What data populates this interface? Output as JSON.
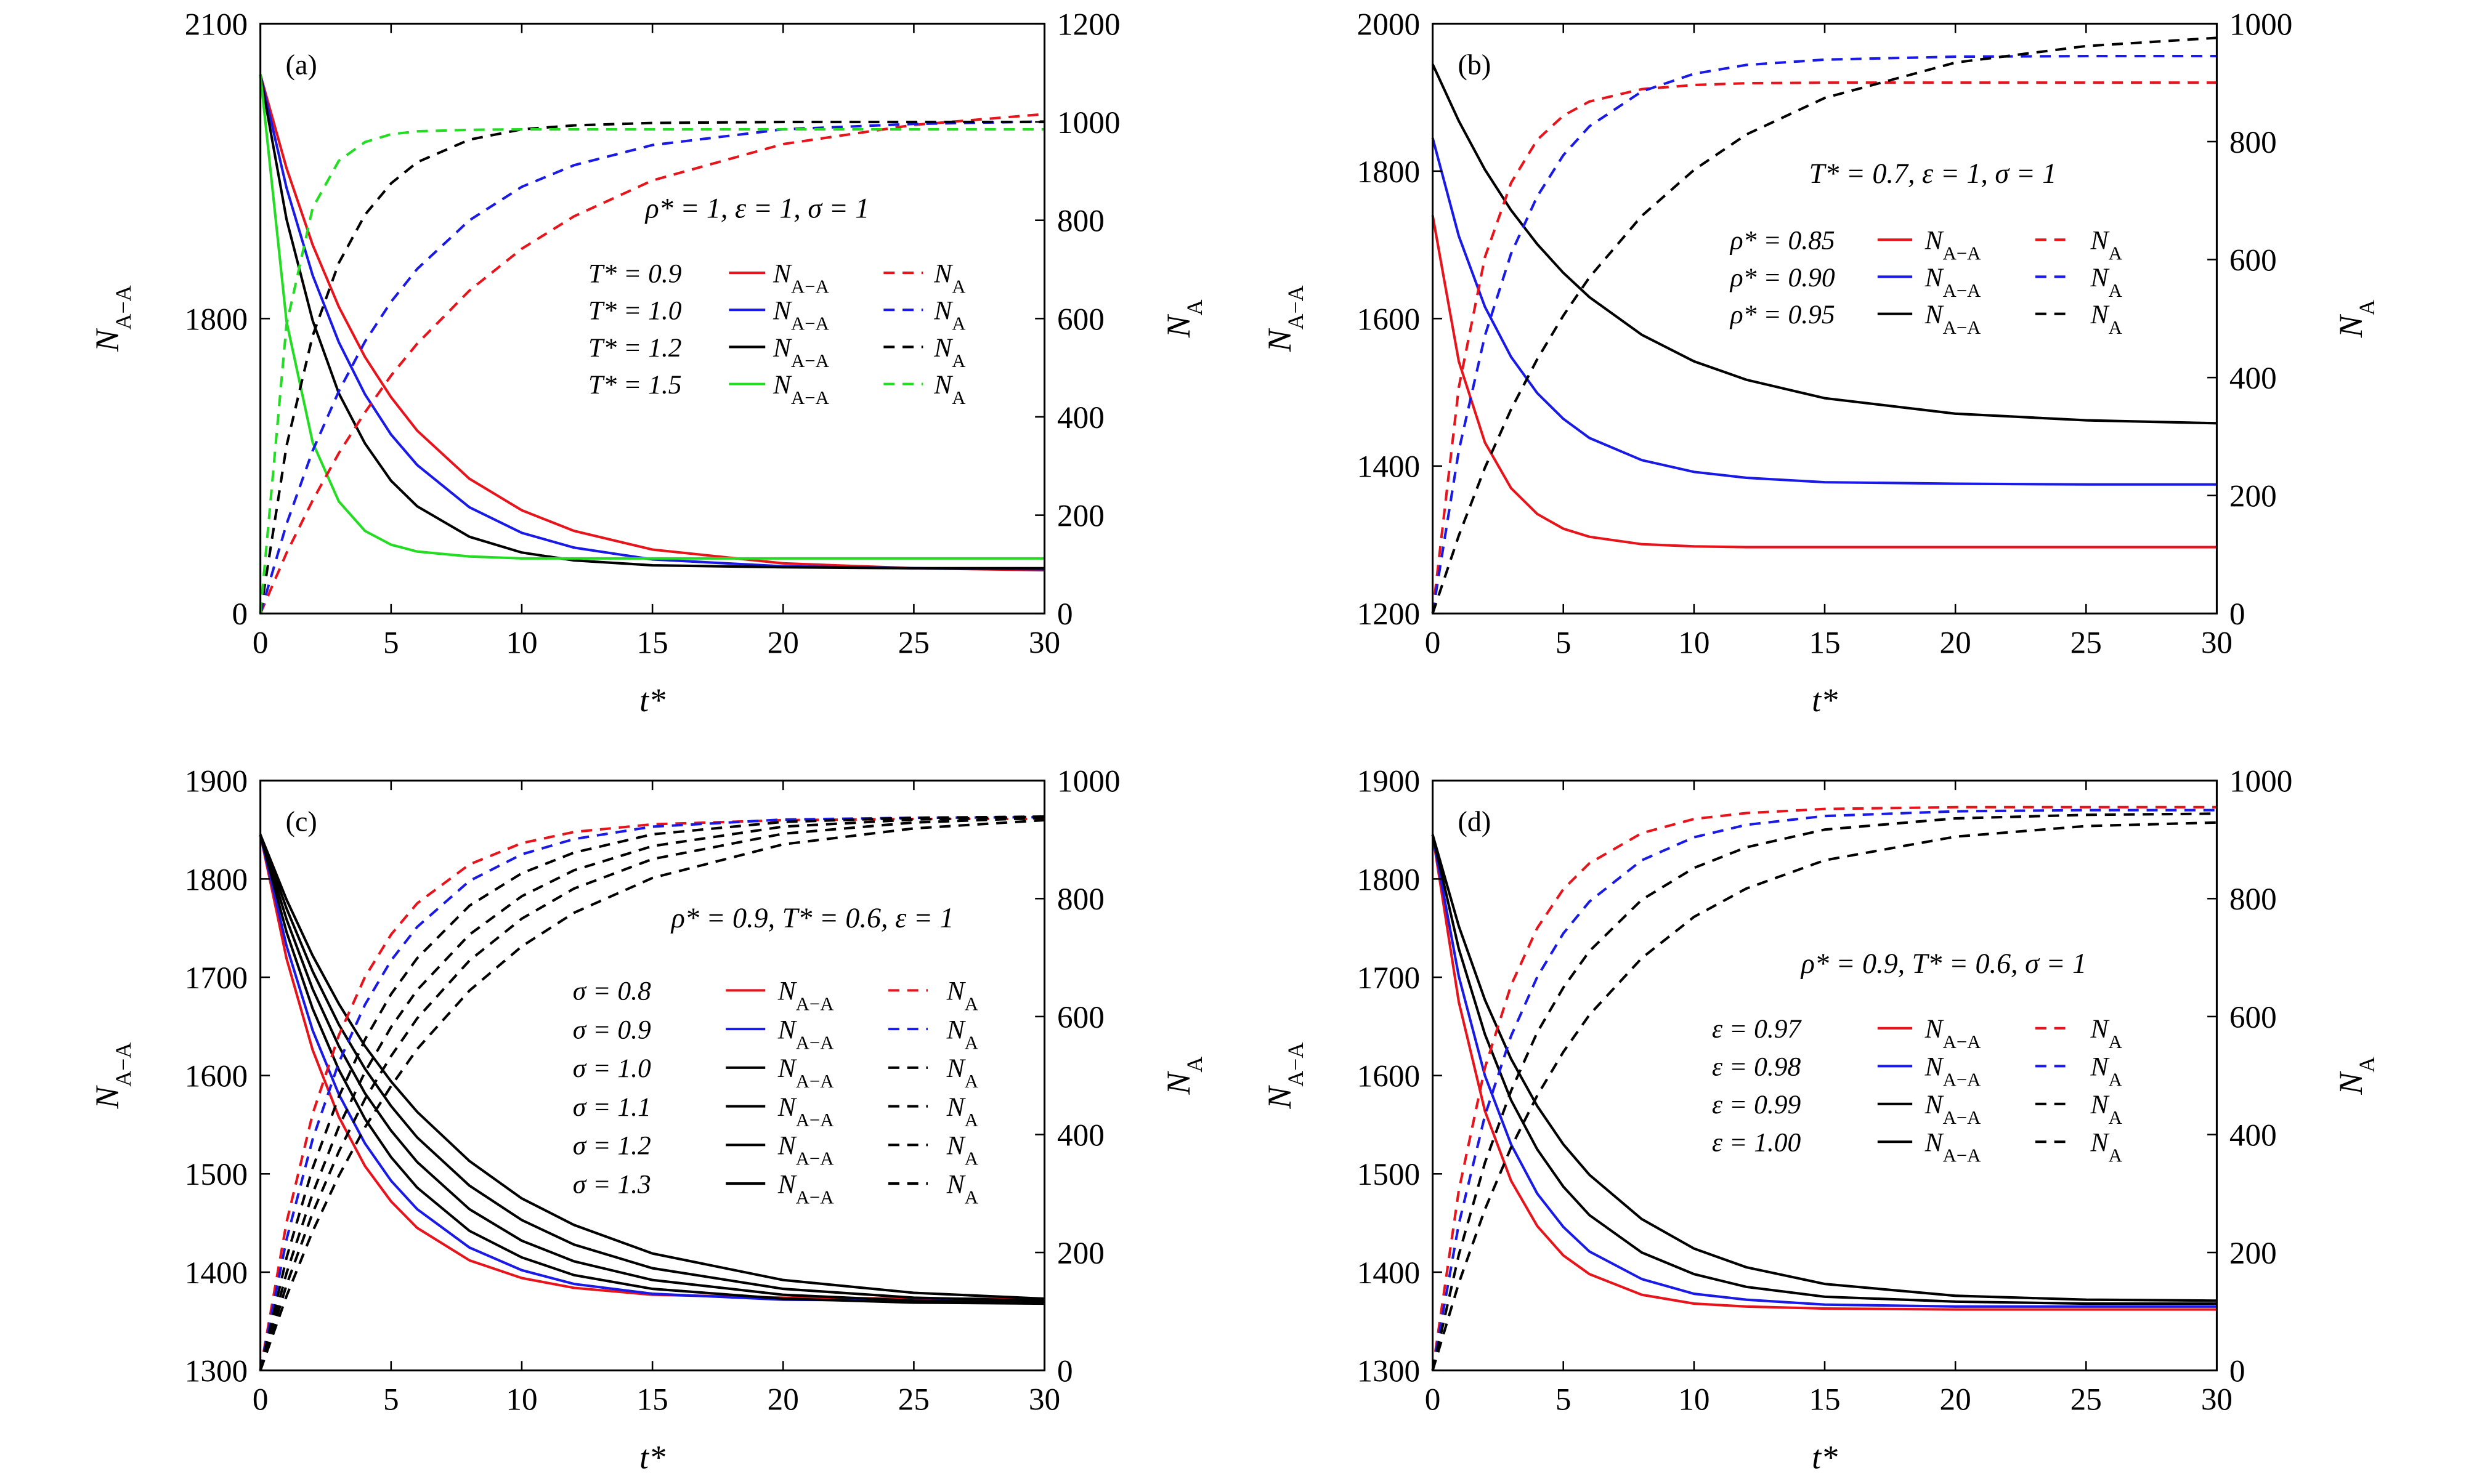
{
  "chart_data": [
    {
      "type": "line",
      "panel_label": "(a)",
      "annotation": "ρ* = 1, ε = 1, σ = 1",
      "x": [
        0,
        1,
        2,
        3,
        4,
        5,
        6,
        8,
        10,
        12,
        15,
        20,
        25,
        30
      ],
      "xlim": [
        0,
        30
      ],
      "xticks": [
        0,
        5,
        10,
        15,
        20,
        25,
        30
      ],
      "xlabel": "t*",
      "ylabel": {
        "text": "N",
        "sub": "A−A"
      },
      "y2label": {
        "text": "N",
        "sub": "A"
      },
      "ylim": [
        1500,
        2100
      ],
      "yticks": [
        {
          "value": 1500,
          "label": "0"
        },
        1800,
        2100
      ],
      "y2lim": [
        0,
        1200
      ],
      "y2ticks": [
        0,
        200,
        400,
        600,
        800,
        1000,
        1200
      ],
      "series": [
        {
          "name": "T* = 0.9",
          "color": "#e8141c",
          "values": [
            2048,
            1953,
            1875,
            1812,
            1761,
            1720,
            1686,
            1637,
            1605,
            1584,
            1565,
            1551,
            1546,
            1544
          ]
        },
        {
          "name": "T* = 1.0",
          "color": "#1a1ae6",
          "values": [
            2048,
            1933,
            1844,
            1776,
            1723,
            1682,
            1651,
            1608,
            1582,
            1567,
            1555,
            1548,
            1546,
            1545
          ]
        },
        {
          "name": "T* = 1.2",
          "color": "#000000",
          "values": [
            2048,
            1901,
            1798,
            1724,
            1673,
            1635,
            1609,
            1578,
            1562,
            1554,
            1549,
            1547,
            1546,
            1546
          ]
        },
        {
          "name": "T* = 1.5",
          "color": "#22dd22",
          "values": [
            2048,
            1797,
            1674,
            1614,
            1584,
            1570,
            1563,
            1558,
            1556,
            1556,
            1556,
            1556,
            1556,
            1556
          ]
        },
        {
          "axis": "y2",
          "dash": true,
          "color": "#e8141c",
          "values": [
            0,
            123,
            230,
            326,
            409,
            484,
            549,
            657,
            742,
            808,
            881,
            955,
            994,
            1016
          ]
        },
        {
          "axis": "y2",
          "dash": true,
          "color": "#1a1ae6",
          "values": [
            0,
            182,
            331,
            452,
            553,
            634,
            701,
            800,
            868,
            912,
            953,
            985,
            996,
            1001
          ]
        },
        {
          "axis": "y2",
          "dash": true,
          "color": "#000000",
          "values": [
            0,
            341,
            565,
            713,
            811,
            875,
            918,
            964,
            985,
            993,
            998,
            1000,
            1000,
            1000
          ]
        },
        {
          "axis": "y2",
          "dash": true,
          "color": "#22dd22",
          "values": [
            0,
            588,
            825,
            921,
            959,
            975,
            981,
            984,
            985,
            985,
            985,
            985,
            985,
            985
          ]
        }
      ]
    },
    {
      "type": "line",
      "panel_label": "(b)",
      "annotation": "T* = 0.7, ε = 1, σ = 1",
      "x": [
        0,
        1,
        2,
        3,
        4,
        5,
        6,
        8,
        10,
        12,
        15,
        20,
        25,
        30
      ],
      "xlim": [
        0,
        30
      ],
      "xticks": [
        0,
        5,
        10,
        15,
        20,
        25,
        30
      ],
      "xlabel": "t*",
      "ylabel": {
        "text": "N",
        "sub": "A−A"
      },
      "y2label": {
        "text": "N",
        "sub": "A"
      },
      "ylim": [
        1200,
        2000
      ],
      "yticks": [
        1200,
        1400,
        1600,
        1800,
        2000
      ],
      "y2lim": [
        0,
        1000
      ],
      "y2ticks": [
        0,
        200,
        400,
        600,
        800,
        1000
      ],
      "series": [
        {
          "name": "ρ* = 0.85",
          "color": "#e8141c",
          "values": [
            1740,
            1542,
            1432,
            1370,
            1335,
            1315,
            1304,
            1294,
            1291,
            1290,
            1290,
            1290,
            1290,
            1290
          ]
        },
        {
          "name": "ρ* = 0.90",
          "color": "#1a1ae6",
          "values": [
            1845,
            1712,
            1616,
            1548,
            1499,
            1464,
            1438,
            1408,
            1392,
            1384,
            1378,
            1376,
            1375,
            1375
          ]
        },
        {
          "name": "ρ* = 0.95",
          "color": "#000000",
          "values": [
            1945,
            1868,
            1802,
            1747,
            1701,
            1662,
            1629,
            1578,
            1542,
            1517,
            1492,
            1471,
            1462,
            1458
          ]
        },
        {
          "axis": "y2",
          "dash": true,
          "color": "#e8141c",
          "values": [
            0,
            383,
            604,
            730,
            803,
            844,
            868,
            889,
            896,
            899,
            900,
            900,
            900,
            900
          ]
        },
        {
          "axis": "y2",
          "dash": true,
          "color": "#1a1ae6",
          "values": [
            0,
            276,
            471,
            610,
            707,
            777,
            826,
            885,
            915,
            930,
            939,
            944,
            945,
            945
          ]
        },
        {
          "axis": "y2",
          "dash": true,
          "color": "#000000",
          "values": [
            0,
            132,
            247,
            346,
            431,
            505,
            570,
            674,
            752,
            812,
            874,
            934,
            962,
            976
          ]
        }
      ]
    },
    {
      "type": "line",
      "panel_label": "(c)",
      "annotation": "ρ* = 0.9, T* = 0.6, ε = 1",
      "x": [
        0,
        1,
        2,
        3,
        4,
        5,
        6,
        8,
        10,
        12,
        15,
        20,
        25,
        30
      ],
      "xlim": [
        0,
        30
      ],
      "xticks": [
        0,
        5,
        10,
        15,
        20,
        25,
        30
      ],
      "xlabel": "t*",
      "ylabel": {
        "text": "N",
        "sub": "A−A"
      },
      "y2label": {
        "text": "N",
        "sub": "A"
      },
      "ylim": [
        1300,
        1900
      ],
      "yticks": [
        1300,
        1400,
        1500,
        1600,
        1700,
        1800,
        1900
      ],
      "y2lim": [
        0,
        1000
      ],
      "y2ticks": [
        0,
        200,
        400,
        600,
        800,
        1000
      ],
      "series": [
        {
          "name": "σ = 0.8",
          "color": "#e8141c",
          "values": [
            1845,
            1719,
            1626,
            1558,
            1508,
            1472,
            1445,
            1412,
            1394,
            1384,
            1377,
            1374,
            1373,
            1373
          ]
        },
        {
          "name": "σ = 0.9",
          "color": "#1a1ae6",
          "values": [
            1845,
            1732,
            1646,
            1581,
            1531,
            1493,
            1464,
            1425,
            1402,
            1388,
            1378,
            1372,
            1371,
            1370
          ]
        },
        {
          "name": "σ = 1.0",
          "color": "#000000",
          "values": [
            1845,
            1746,
            1668,
            1606,
            1556,
            1517,
            1486,
            1442,
            1415,
            1397,
            1383,
            1373,
            1369,
            1368
          ]
        },
        {
          "name": "σ = 1.1",
          "color": "#000000",
          "values": [
            1845,
            1759,
            1688,
            1630,
            1582,
            1544,
            1512,
            1464,
            1432,
            1411,
            1392,
            1377,
            1371,
            1369
          ]
        },
        {
          "name": "σ = 1.2",
          "color": "#000000",
          "values": [
            1845,
            1770,
            1706,
            1652,
            1607,
            1569,
            1537,
            1488,
            1453,
            1428,
            1404,
            1383,
            1374,
            1371
          ]
        },
        {
          "name": "σ = 1.3",
          "color": "#000000",
          "values": [
            1845,
            1779,
            1722,
            1673,
            1630,
            1594,
            1563,
            1513,
            1475,
            1448,
            1419,
            1392,
            1379,
            1373
          ]
        },
        {
          "axis": "y2",
          "dash": true,
          "color": "#e8141c",
          "values": [
            0,
            251,
            435,
            568,
            667,
            739,
            792,
            858,
            894,
            913,
            926,
            933,
            935,
            935
          ]
        },
        {
          "axis": "y2",
          "dash": true,
          "color": "#1a1ae6",
          "values": [
            0,
            222,
            392,
            522,
            620,
            695,
            752,
            830,
            875,
            901,
            922,
            934,
            937,
            938
          ]
        },
        {
          "axis": "y2",
          "dash": true,
          "color": "#000000",
          "values": [
            0,
            191,
            343,
            464,
            561,
            638,
            699,
            788,
            843,
            878,
            909,
            930,
            937,
            939
          ]
        },
        {
          "axis": "y2",
          "dash": true,
          "color": "#000000",
          "values": [
            0,
            165,
            300,
            413,
            506,
            582,
            645,
            739,
            804,
            848,
            889,
            922,
            934,
            939
          ]
        },
        {
          "axis": "y2",
          "dash": true,
          "color": "#000000",
          "values": [
            0,
            145,
            267,
            371,
            460,
            533,
            597,
            695,
            766,
            817,
            867,
            910,
            929,
            937
          ]
        },
        {
          "axis": "y2",
          "dash": true,
          "color": "#000000",
          "values": [
            0,
            126,
            236,
            330,
            412,
            482,
            545,
            644,
            719,
            776,
            835,
            892,
            919,
            933
          ]
        }
      ]
    },
    {
      "type": "line",
      "panel_label": "(d)",
      "annotation": "ρ* = 0.9, T* = 0.6, σ = 1",
      "x": [
        0,
        1,
        2,
        3,
        4,
        5,
        6,
        8,
        10,
        12,
        15,
        20,
        25,
        30
      ],
      "xlim": [
        0,
        30
      ],
      "xticks": [
        0,
        5,
        10,
        15,
        20,
        25,
        30
      ],
      "xlabel": "t*",
      "ylabel": {
        "text": "N",
        "sub": "A−A"
      },
      "y2label": {
        "text": "N",
        "sub": "A"
      },
      "ylim": [
        1300,
        1900
      ],
      "yticks": [
        1300,
        1400,
        1500,
        1600,
        1700,
        1800,
        1900
      ],
      "y2lim": [
        0,
        1000
      ],
      "y2ticks": [
        0,
        200,
        400,
        600,
        800,
        1000
      ],
      "series": [
        {
          "name": "ε = 0.97",
          "color": "#e8141c",
          "values": [
            1845,
            1675,
            1564,
            1493,
            1447,
            1417,
            1398,
            1377,
            1368,
            1365,
            1363,
            1362,
            1362,
            1362
          ]
        },
        {
          "name": "ε = 0.98",
          "color": "#1a1ae6",
          "values": [
            1845,
            1701,
            1600,
            1530,
            1480,
            1446,
            1421,
            1393,
            1378,
            1372,
            1367,
            1365,
            1365,
            1365
          ]
        },
        {
          "name": "ε = 0.99",
          "color": "#000000",
          "values": [
            1845,
            1729,
            1642,
            1575,
            1525,
            1487,
            1458,
            1420,
            1398,
            1385,
            1375,
            1370,
            1368,
            1368
          ]
        },
        {
          "name": "ε = 1.00",
          "color": "#000000",
          "values": [
            1845,
            1752,
            1677,
            1617,
            1569,
            1530,
            1499,
            1454,
            1424,
            1405,
            1388,
            1376,
            1372,
            1371
          ]
        },
        {
          "axis": "y2",
          "dash": true,
          "color": "#e8141c",
          "values": [
            0,
            305,
            513,
            653,
            750,
            816,
            860,
            911,
            935,
            945,
            952,
            955,
            955,
            955
          ]
        },
        {
          "axis": "y2",
          "dash": true,
          "color": "#1a1ae6",
          "values": [
            0,
            248,
            432,
            567,
            667,
            741,
            795,
            865,
            904,
            925,
            940,
            948,
            950,
            950
          ]
        },
        {
          "axis": "y2",
          "dash": true,
          "color": "#000000",
          "values": [
            0,
            196,
            352,
            474,
            573,
            649,
            711,
            798,
            852,
            887,
            917,
            936,
            942,
            944
          ]
        },
        {
          "axis": "y2",
          "dash": true,
          "color": "#000000",
          "values": [
            0,
            148,
            273,
            378,
            466,
            540,
            603,
            699,
            769,
            817,
            865,
            905,
            923,
            929
          ]
        }
      ]
    }
  ]
}
